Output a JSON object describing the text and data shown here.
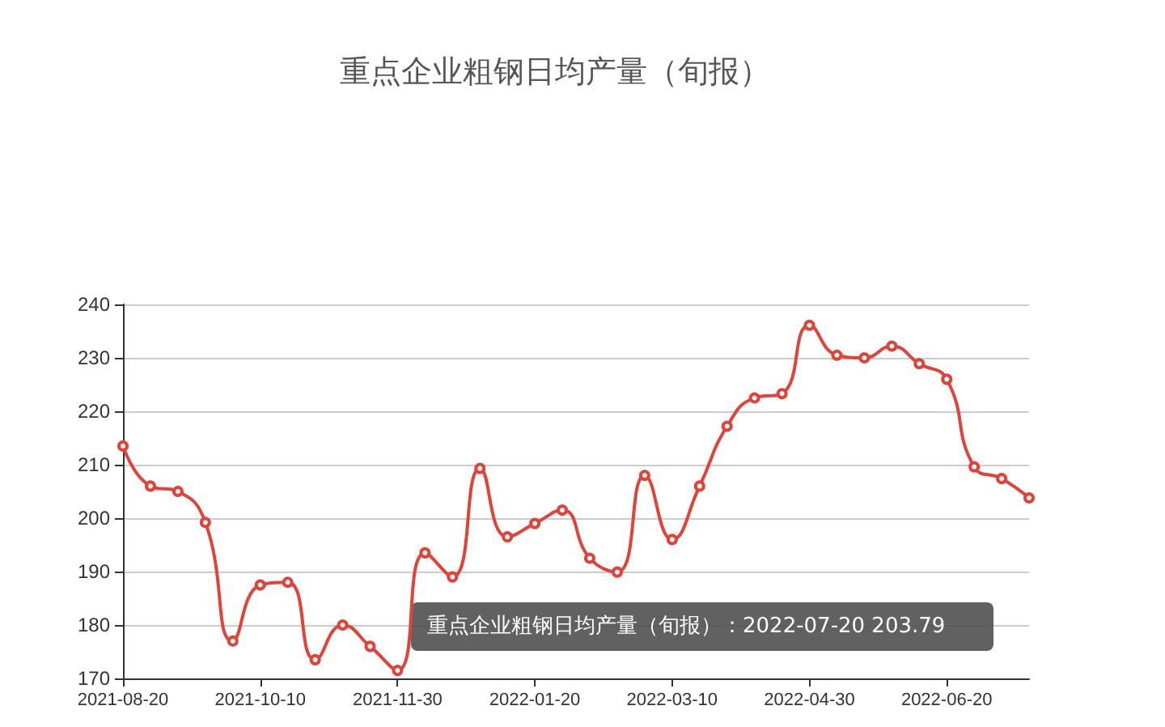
{
  "chart_data": {
    "type": "line",
    "title": "重点企业粗钢日均产量（旬报）",
    "categories": [
      "2021-08-20",
      null,
      null,
      null,
      null,
      "2021-10-10",
      null,
      null,
      null,
      null,
      "2021-11-30",
      null,
      null,
      null,
      null,
      "2022-01-20",
      null,
      null,
      null,
      null,
      "2022-03-10",
      null,
      null,
      null,
      null,
      "2022-04-30",
      null,
      null,
      null,
      null,
      "2022-06-20",
      null,
      null,
      null
    ],
    "series": [
      {
        "color": "#e0433a",
        "values": [
          213.5,
          206,
          205,
          199.2,
          177,
          187.5,
          188,
          173.5,
          180,
          176,
          171.5,
          193.5,
          189,
          209.3,
          196.5,
          199,
          201.5,
          192.5,
          189.9,
          208,
          196,
          206,
          217.2,
          222.5,
          223.3,
          236.1,
          230.5,
          230,
          232.2,
          228.9,
          226,
          209.6,
          207.4,
          203.79
        ]
      }
    ],
    "ylim": [
      170,
      240
    ],
    "yticks": [
      170,
      180,
      190,
      200,
      210,
      220,
      230,
      240
    ],
    "grid": "y",
    "marker": "circle",
    "line_style": "solid",
    "annotations": [
      "重点企业粗钢日均产量（旬报）：2022-07-20 203.79"
    ]
  }
}
